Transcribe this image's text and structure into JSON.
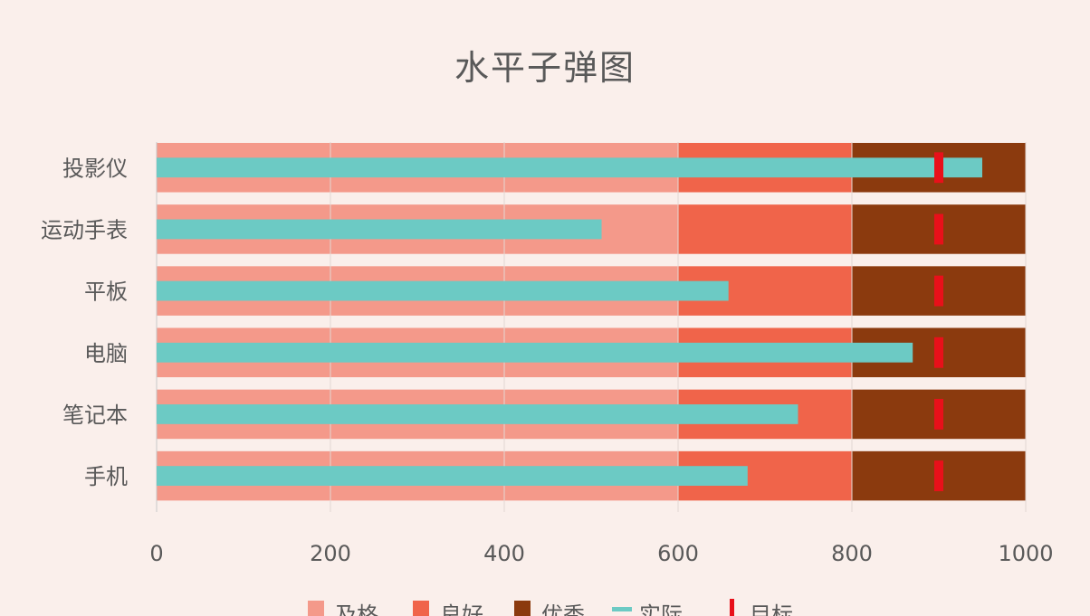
{
  "chart_data": {
    "type": "bar",
    "orientation": "horizontal",
    "title": "水平子弹图",
    "categories": [
      "投影仪",
      "运动手表",
      "平板",
      "电脑",
      "笔记本",
      "手机"
    ],
    "xlim": [
      0,
      1000
    ],
    "xticks": [
      0,
      200,
      400,
      600,
      800,
      1000
    ],
    "grid": true,
    "legend_position": "bottom",
    "bands": [
      {
        "name": "及格",
        "from": 0,
        "to": 600,
        "color": "#f4998a"
      },
      {
        "name": "良好",
        "from": 600,
        "to": 800,
        "color": "#f0644a"
      },
      {
        "name": "优秀",
        "from": 800,
        "to": 1000,
        "color": "#8b3a0e"
      }
    ],
    "series": [
      {
        "name": "实际",
        "color": "#6ccac4",
        "values": [
          950,
          512,
          658,
          870,
          738,
          680
        ]
      },
      {
        "name": "目标",
        "color": "#e8101a",
        "values": [
          900,
          900,
          900,
          900,
          900,
          900
        ]
      }
    ]
  }
}
